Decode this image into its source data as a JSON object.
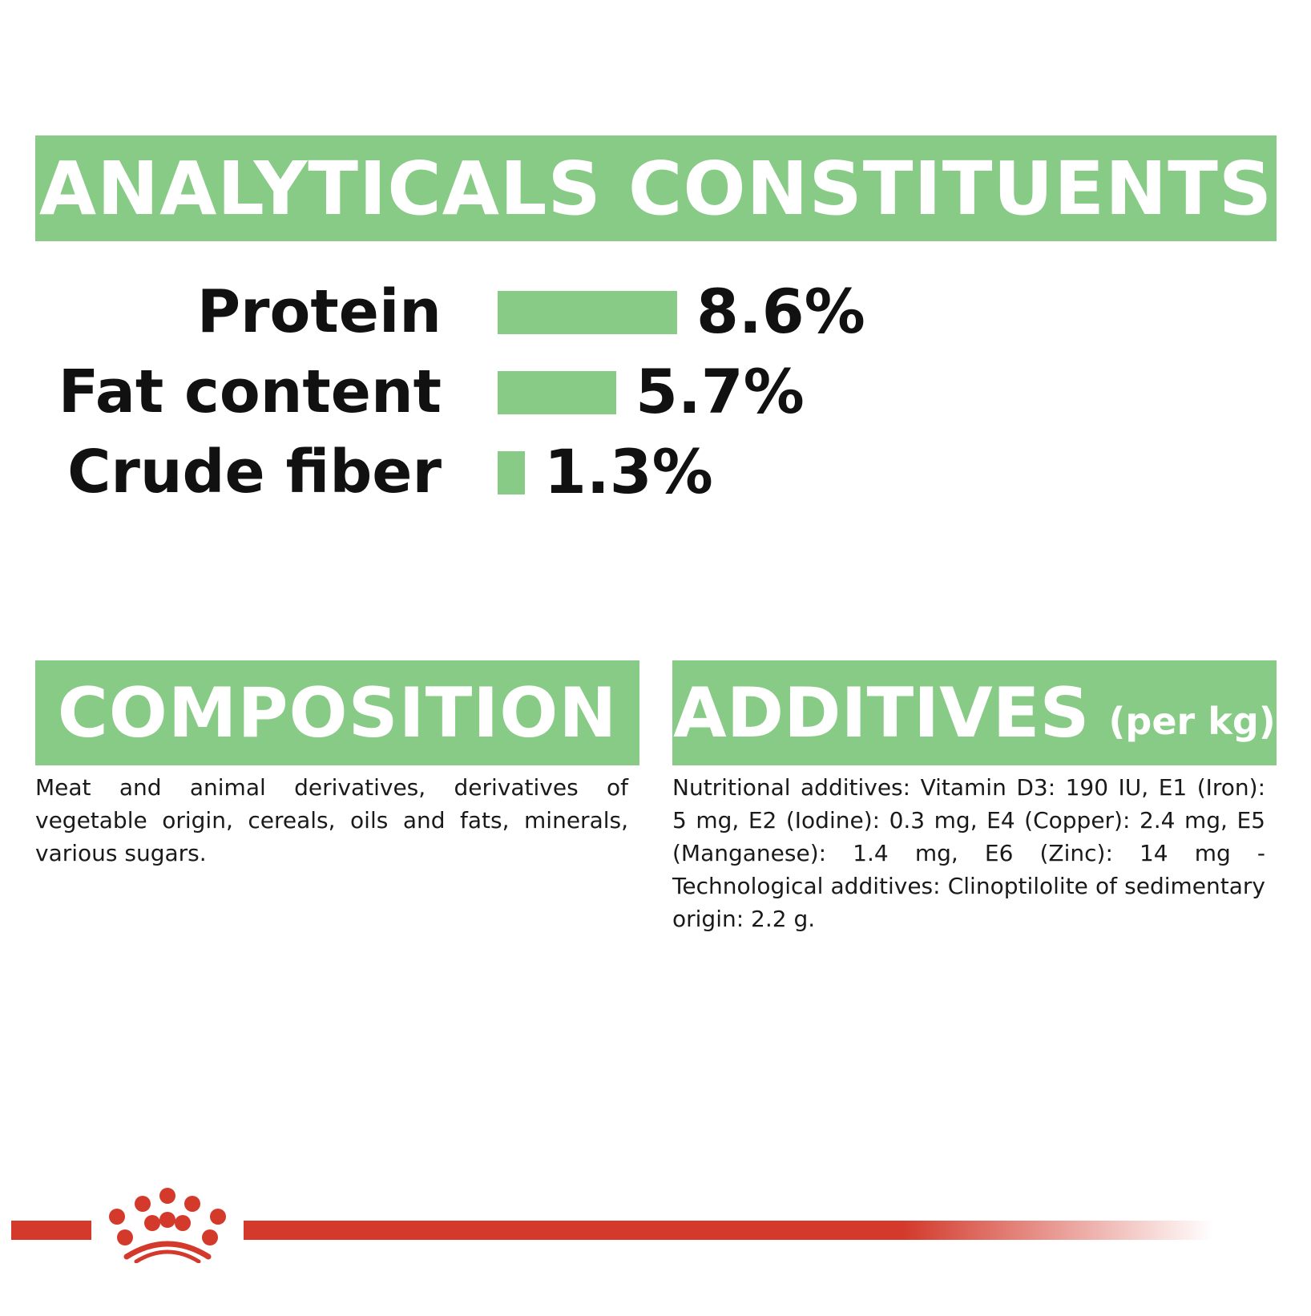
{
  "analytical": {
    "title": "ANALYTICALS CONSTITUENTS",
    "rows": [
      {
        "label": "Protein",
        "value_text": "8.6%",
        "value": 8.6
      },
      {
        "label": "Fat content",
        "value_text": "5.7%",
        "value": 5.7
      },
      {
        "label": "Crude fiber",
        "value_text": "1.3%",
        "value": 1.3
      }
    ],
    "bar_color": "#87cb86"
  },
  "composition": {
    "title": "COMPOSITION",
    "text": "Meat and animal derivatives, derivatives of vegetable origin, cereals, oils and fats, minerals, various sugars."
  },
  "additives": {
    "title": "ADDITIVES",
    "title_suffix": "(per kg)",
    "text": "Nutritional additives: Vitamin D3: 190 IU, E1 (Iron): 5 mg, E2 (Iodine): 0.3 mg, E4 (Copper): 2.4 mg, E5 (Manganese): 1.4 mg, E6 (Zinc): 14 mg - Technological additives: Clinoptilolite of sedimentary origin: 2.2 g."
  },
  "brand": {
    "logo_icon": "royal-canin-crown-icon",
    "accent_color": "#d33a2c",
    "banner_color": "#87cb86"
  }
}
